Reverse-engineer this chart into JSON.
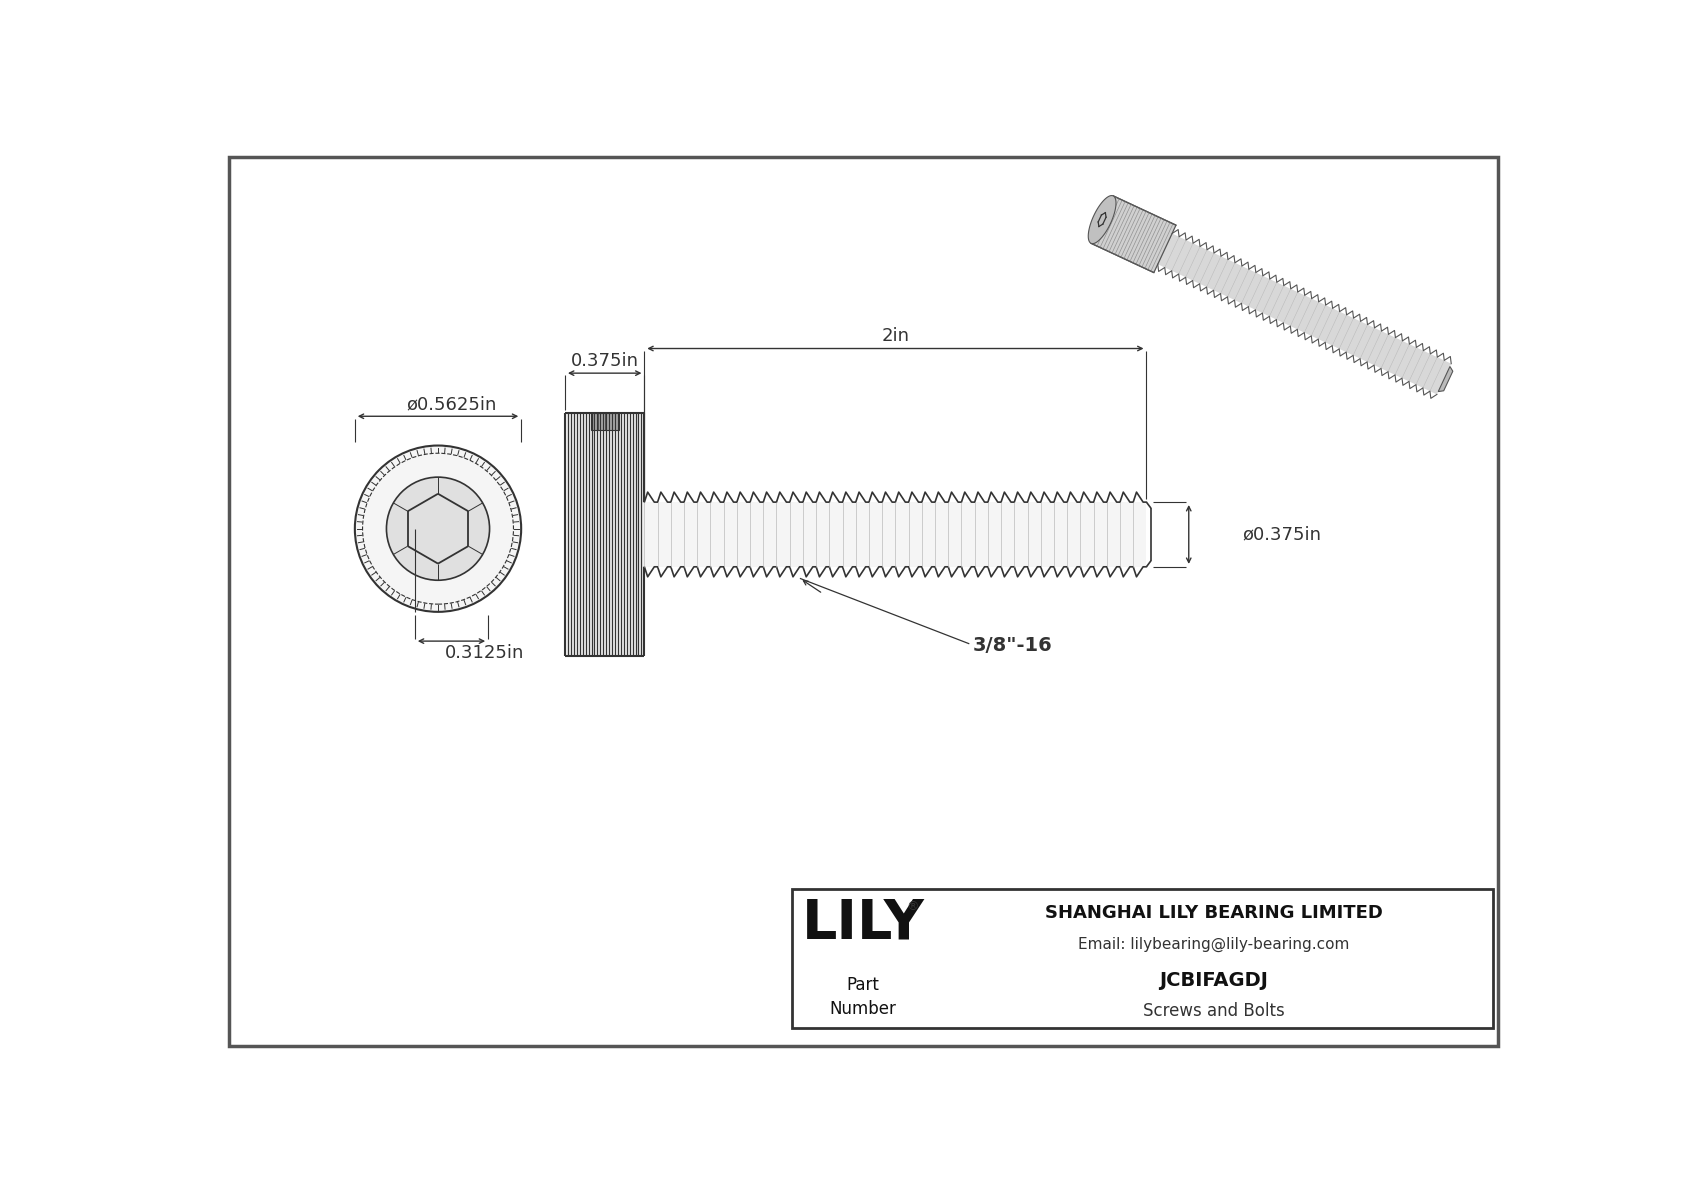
{
  "bg_color": "#ffffff",
  "border_color": "#555555",
  "line_color": "#333333",
  "dim_color": "#333333",
  "title": "JCBIFAGDJ",
  "subtitle": "Screws and Bolts",
  "company": "SHANGHAI LILY BEARING LIMITED",
  "email": "Email: lilybearing@lily-bearing.com",
  "part_label": "Part\nNumber",
  "logo_text": "LILY",
  "logo_reg": "®",
  "dim_head_diameter": "ø0.5625in",
  "dim_head_height": "0.3125in",
  "dim_shank_length": "0.375in",
  "dim_total_length": "2in",
  "dim_thread_diameter": "ø0.375in",
  "dim_thread_label": "3/8\"-16",
  "font_size_dim": 13,
  "font_size_label": 12,
  "font_size_title": 14,
  "font_size_logo": 40
}
